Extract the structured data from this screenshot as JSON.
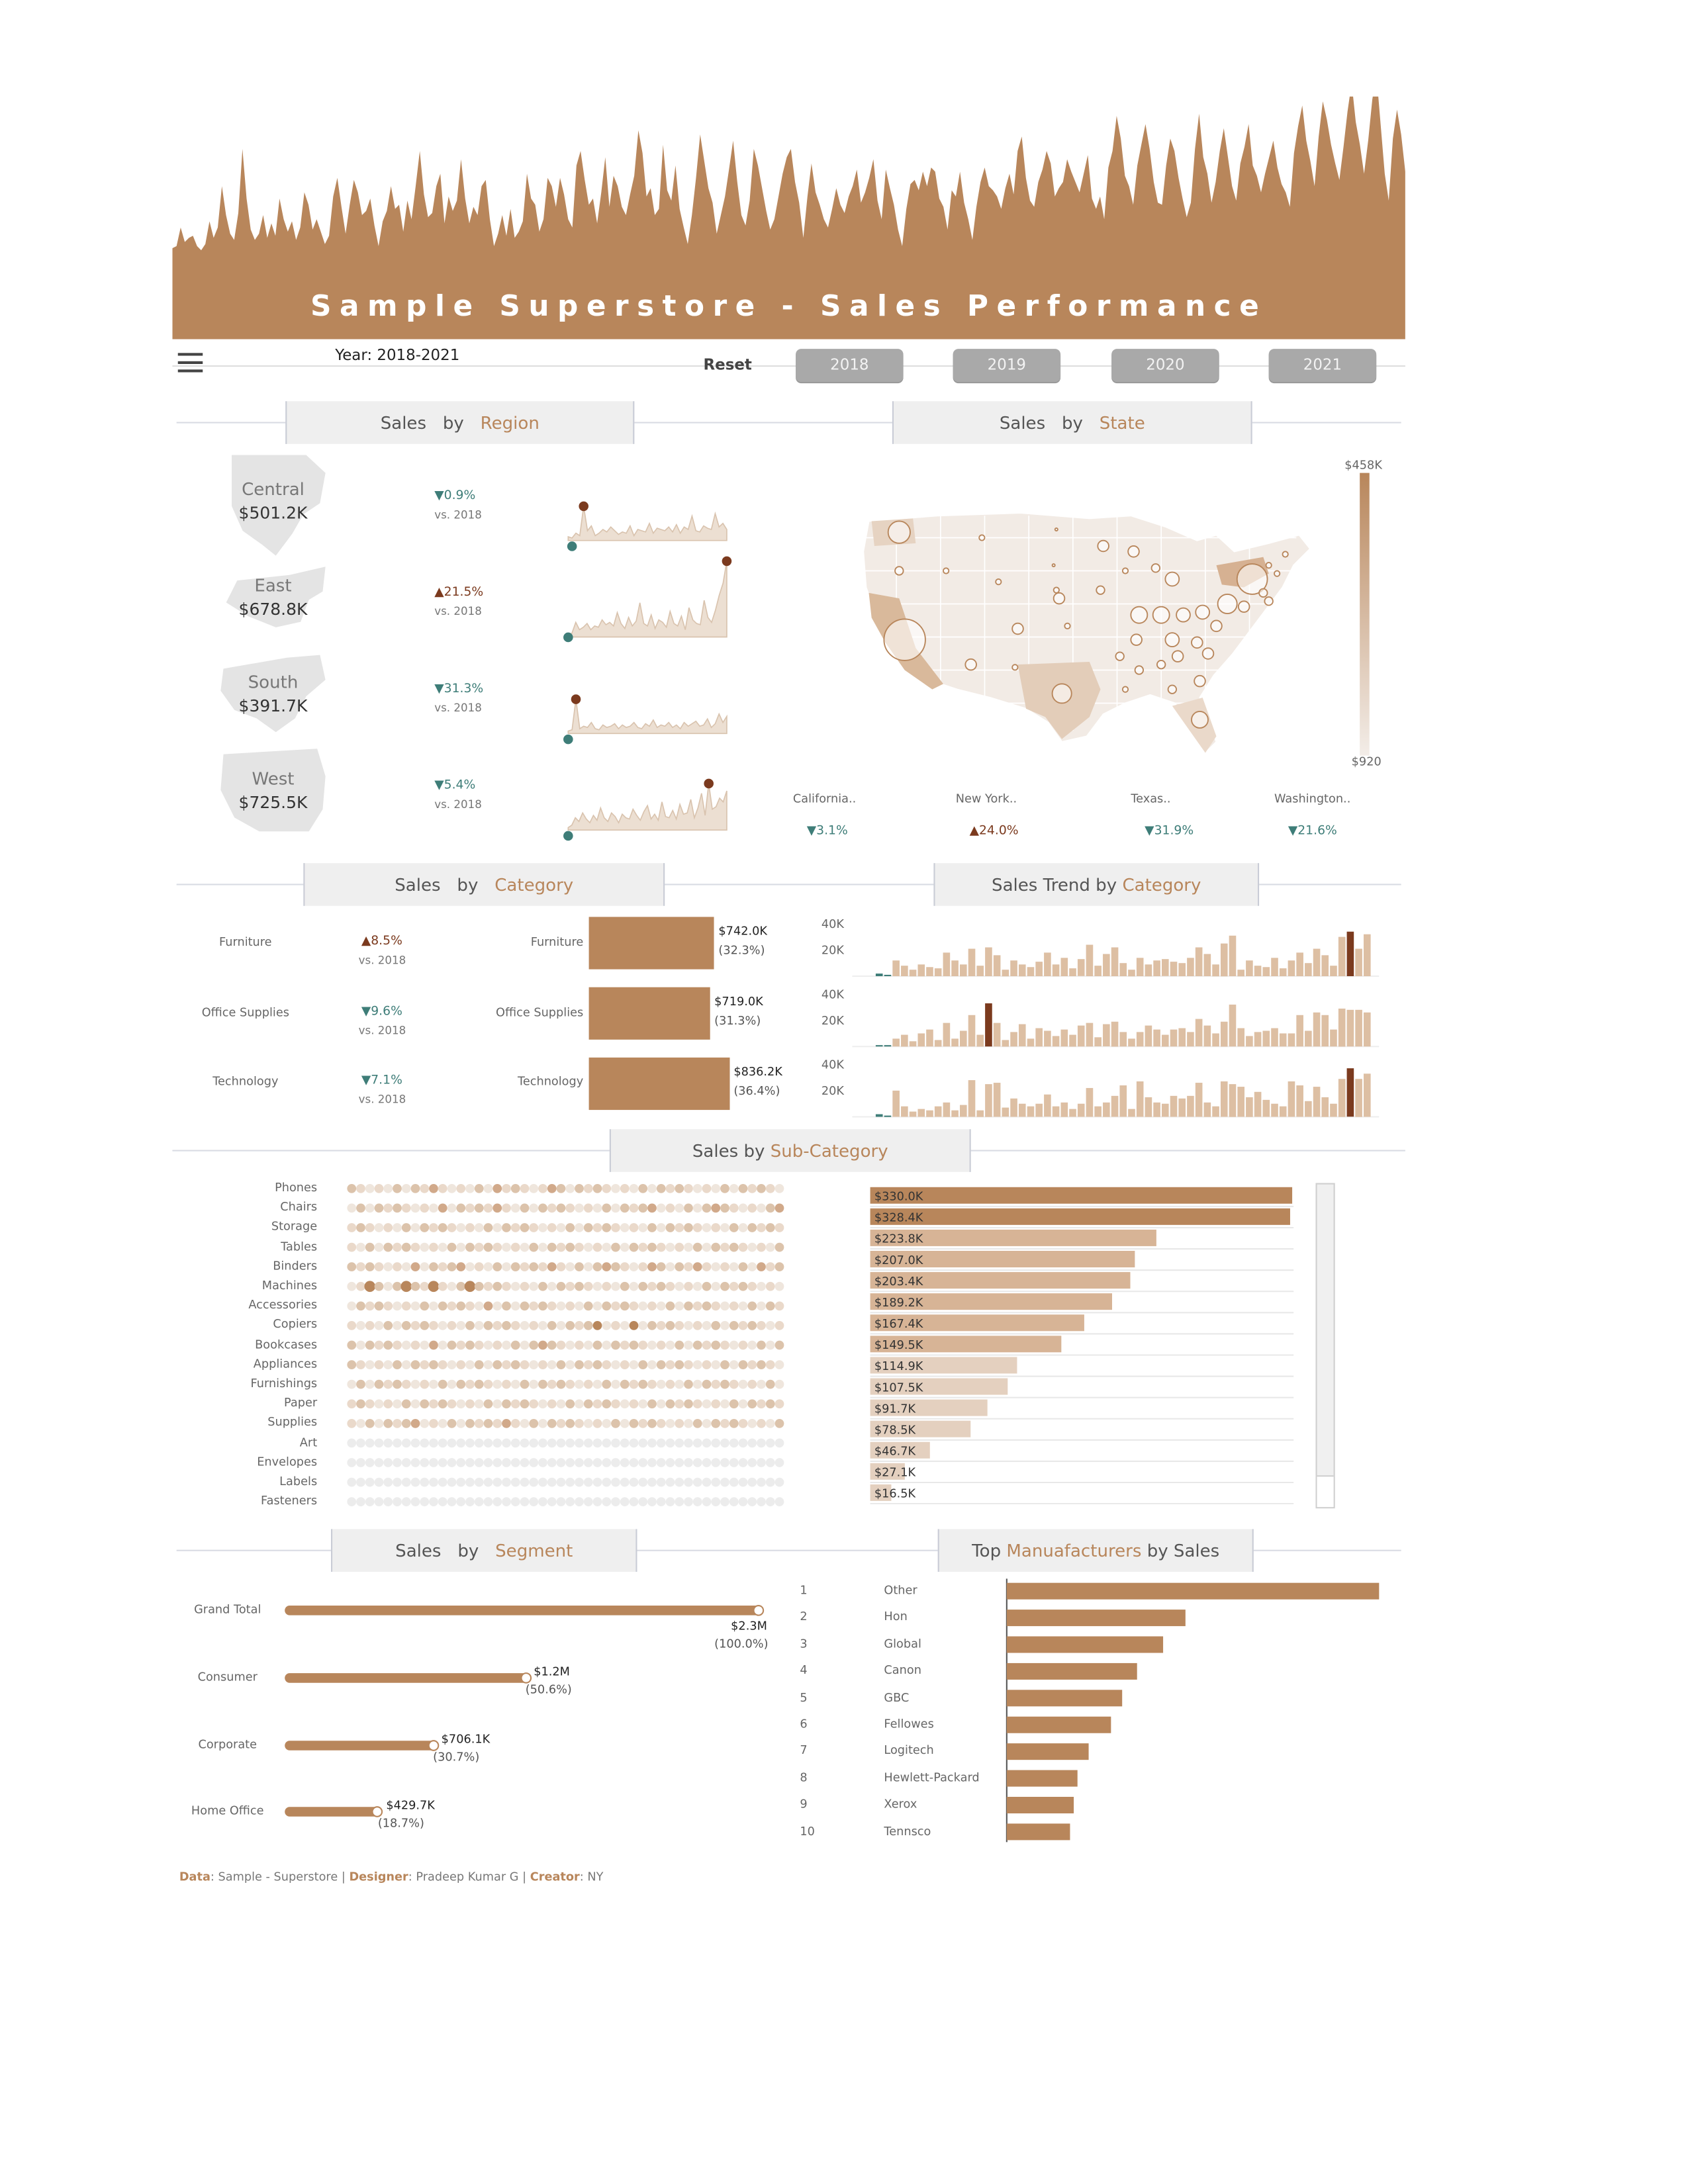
{
  "banner": {
    "title": "Sample Superstore - Sales Performance",
    "color": "#b8865b",
    "profile": [
      8,
      9,
      18,
      11,
      13,
      14,
      9,
      7,
      10,
      21,
      13,
      18,
      38,
      24,
      15,
      12,
      25,
      56,
      32,
      17,
      12,
      15,
      24,
      13,
      20,
      14,
      32,
      22,
      16,
      21,
      12,
      18,
      35,
      29,
      17,
      22,
      16,
      10,
      14,
      33,
      42,
      28,
      15,
      29,
      41,
      35,
      24,
      26,
      32,
      19,
      9,
      21,
      26,
      38,
      27,
      29,
      16,
      31,
      22,
      38,
      55,
      34,
      23,
      25,
      38,
      44,
      20,
      33,
      26,
      31,
      51,
      32,
      20,
      28,
      24,
      38,
      41,
      22,
      9,
      15,
      24,
      14,
      27,
      13,
      16,
      21,
      44,
      32,
      29,
      16,
      22,
      42,
      38,
      28,
      42,
      34,
      22,
      18,
      48,
      55,
      41,
      29,
      32,
      20,
      35,
      52,
      28,
      43,
      38,
      28,
      24,
      34,
      43,
      65,
      54,
      33,
      37,
      24,
      27,
      58,
      36,
      31,
      48,
      27,
      18,
      10,
      24,
      42,
      63,
      50,
      37,
      30,
      15,
      24,
      33,
      46,
      60,
      40,
      24,
      19,
      31,
      56,
      48,
      37,
      26,
      17,
      22,
      33,
      44,
      52,
      56,
      40,
      30,
      13,
      33,
      49,
      35,
      29,
      22,
      18,
      27,
      37,
      29,
      25,
      33,
      38,
      46,
      30,
      35,
      42,
      51,
      31,
      22,
      46,
      37,
      29,
      17,
      9,
      27,
      39,
      41,
      36,
      45,
      38,
      47,
      45,
      32,
      28,
      17,
      36,
      33,
      45,
      30,
      22,
      12,
      28,
      40,
      47,
      38,
      36,
      33,
      27,
      37,
      44,
      34,
      55,
      62,
      42,
      31,
      28,
      40,
      46,
      55,
      49,
      33,
      37,
      40,
      51,
      45,
      40,
      35,
      44,
      53,
      32,
      27,
      33,
      22,
      47,
      55,
      72,
      61,
      43,
      38,
      29,
      48,
      58,
      68,
      56,
      40,
      30,
      29,
      48,
      61,
      55,
      42,
      32,
      23,
      30,
      56,
      73,
      52,
      44,
      30,
      40,
      55,
      66,
      52,
      38,
      31,
      49,
      57,
      68,
      48,
      43,
      35,
      44,
      52,
      60,
      47,
      39,
      35,
      28,
      54,
      67,
      77,
      60,
      50,
      38,
      62,
      79,
      70,
      58,
      49,
      41,
      57,
      74,
      88,
      69,
      58,
      44,
      60,
      80,
      92,
      68,
      44,
      31,
      61,
      75,
      63,
      45
    ]
  },
  "toolbar": {
    "year_label": "Year: 2018-2021",
    "reset_label": "Reset",
    "years": [
      "2018",
      "2019",
      "2020",
      "2021"
    ]
  },
  "headers": {
    "region": {
      "a": "Sales",
      "b": "by",
      "acc": "Region"
    },
    "state": {
      "a": "Sales",
      "b": "by",
      "acc": "State"
    },
    "category": {
      "a": "Sales",
      "b": "by",
      "acc": "Category"
    },
    "trend": {
      "a": "Sales Trend by",
      "acc": "Category"
    },
    "subcategory": {
      "a": "Sales by",
      "acc": "Sub-Category"
    },
    "segment": {
      "a": "Sales",
      "b": "by",
      "acc": "Segment"
    },
    "manufacturers": {
      "a": "Top",
      "acc": "Manuafacturers",
      "b": "by Sales"
    }
  },
  "regions": [
    {
      "name": "Central",
      "value": "$501.2K",
      "change": "▼0.9%",
      "dir": "down",
      "vs": "vs. 2018"
    },
    {
      "name": "East",
      "value": "$678.8K",
      "change": "▲21.5%",
      "dir": "up",
      "vs": "vs. 2018"
    },
    {
      "name": "South",
      "value": "$391.7K",
      "change": "▼31.3%",
      "dir": "down",
      "vs": "vs. 2018"
    },
    {
      "name": "West",
      "value": "$725.5K",
      "change": "▼5.4%",
      "dir": "down",
      "vs": "vs. 2018"
    }
  ],
  "states": {
    "legend_max": "$458K",
    "legend_min": "$920",
    "top": [
      {
        "name": "California..",
        "change": "▼3.1%",
        "dir": "down"
      },
      {
        "name": "New York..",
        "change": "▲24.0%",
        "dir": "up"
      },
      {
        "name": "Texas..",
        "change": "▼31.9%",
        "dir": "down"
      },
      {
        "name": "Washington..",
        "change": "▼21.6%",
        "dir": "down"
      }
    ]
  },
  "categories": [
    {
      "name": "Furniture",
      "change": "▲8.5%",
      "dir": "up",
      "vs": "vs. 2018",
      "value": "$742.0K",
      "pct": "(32.3%)"
    },
    {
      "name": "Office Supplies",
      "change": "▼9.6%",
      "dir": "down",
      "vs": "vs. 2018",
      "value": "$719.0K",
      "pct": "(31.3%)"
    },
    {
      "name": "Technology",
      "change": "▼7.1%",
      "dir": "down",
      "vs": "vs. 2018",
      "value": "$836.2K",
      "pct": "(36.4%)"
    }
  ],
  "trend_axis": [
    "40K",
    "20K"
  ],
  "subcategories": [
    {
      "name": "Phones",
      "value": "$330.0K"
    },
    {
      "name": "Chairs",
      "value": "$328.4K"
    },
    {
      "name": "Storage",
      "value": "$223.8K"
    },
    {
      "name": "Tables",
      "value": "$207.0K"
    },
    {
      "name": "Binders",
      "value": "$203.4K"
    },
    {
      "name": "Machines",
      "value": "$189.2K"
    },
    {
      "name": "Accessories",
      "value": "$167.4K"
    },
    {
      "name": "Copiers",
      "value": "$149.5K"
    },
    {
      "name": "Bookcases",
      "value": "$114.9K"
    },
    {
      "name": "Appliances",
      "value": "$107.5K"
    },
    {
      "name": "Furnishings",
      "value": "$91.7K"
    },
    {
      "name": "Paper",
      "value": "$78.5K"
    },
    {
      "name": "Supplies",
      "value": "$46.7K"
    },
    {
      "name": "Art",
      "value": "$27.1K"
    },
    {
      "name": "Envelopes",
      "value": "$16.5K"
    },
    {
      "name": "Labels",
      "value": ""
    },
    {
      "name": "Fasteners",
      "value": ""
    }
  ],
  "segments": [
    {
      "name": "Grand Total",
      "value": "$2.3M",
      "pct": "(100.0%)"
    },
    {
      "name": "Consumer",
      "value": "$1.2M",
      "pct": "(50.6%)"
    },
    {
      "name": "Corporate",
      "value": "$706.1K",
      "pct": "(30.7%)"
    },
    {
      "name": "Home Office",
      "value": "$429.7K",
      "pct": "(18.7%)"
    }
  ],
  "manufacturers": [
    {
      "rank": "1",
      "name": "Other"
    },
    {
      "rank": "2",
      "name": "Hon"
    },
    {
      "rank": "3",
      "name": "Global"
    },
    {
      "rank": "4",
      "name": "Canon"
    },
    {
      "rank": "5",
      "name": "GBC"
    },
    {
      "rank": "6",
      "name": "Fellowes"
    },
    {
      "rank": "7",
      "name": "Logitech"
    },
    {
      "rank": "8",
      "name": "Hewlett-Packard"
    },
    {
      "rank": "9",
      "name": "Xerox"
    },
    {
      "rank": "10",
      "name": "Tennsco"
    }
  ],
  "footer": {
    "data_key": "Data",
    "data_val": ": Sample - Superstore | ",
    "designer_key": "Designer",
    "designer_val": ": Pradeep Kumar G | ",
    "creator_key": "Creator",
    "creator_val": ": NY"
  },
  "chart_data": [
    {
      "type": "bar",
      "title": "Sales by Category",
      "categories": [
        "Furniture",
        "Office Supplies",
        "Technology"
      ],
      "values": [
        742.0,
        719.0,
        836.2
      ],
      "unit": "$K",
      "percent": [
        32.3,
        31.3,
        36.4
      ]
    },
    {
      "type": "bar",
      "title": "Sales by Sub-Category",
      "categories": [
        "Phones",
        "Chairs",
        "Storage",
        "Tables",
        "Binders",
        "Machines",
        "Accessories",
        "Copiers",
        "Bookcases",
        "Appliances",
        "Furnishings",
        "Paper",
        "Supplies",
        "Art",
        "Envelopes"
      ],
      "values": [
        330.0,
        328.4,
        223.8,
        207.0,
        203.4,
        189.2,
        167.4,
        149.5,
        114.9,
        107.5,
        91.7,
        78.5,
        46.7,
        27.1,
        16.5
      ],
      "unit": "$K"
    },
    {
      "type": "bar",
      "title": "Sales by Segment",
      "categories": [
        "Grand Total",
        "Consumer",
        "Corporate",
        "Home Office"
      ],
      "values": [
        2300,
        1160,
        706.1,
        429.7
      ],
      "unit": "$K",
      "percent": [
        100.0,
        50.6,
        30.7,
        18.7
      ]
    },
    {
      "type": "bar",
      "title": "Top Manuafacturers by Sales",
      "categories": [
        "Other",
        "Hon",
        "Global",
        "Canon",
        "GBC",
        "Fellowes",
        "Logitech",
        "Hewlett-Packard",
        "Xerox",
        "Tennsco"
      ],
      "values": [
        100,
        48,
        42,
        35,
        31,
        28,
        22,
        19,
        18,
        17
      ],
      "unit": "relative bar length (%)"
    },
    {
      "type": "bar",
      "title": "Sales Trend by Category",
      "ylim": [
        0,
        45
      ],
      "unit": "$K",
      "series": [
        {
          "name": "Furniture",
          "values": [
            2,
            1,
            12,
            8,
            5,
            9,
            7,
            6,
            18,
            12,
            9,
            21,
            8,
            22,
            16,
            5,
            12,
            9,
            7,
            11,
            18,
            9,
            14,
            6,
            13,
            24,
            8,
            17,
            22,
            10,
            5,
            14,
            9,
            12,
            13,
            11,
            10,
            14,
            22,
            17,
            9,
            25,
            31,
            5,
            12,
            8,
            7,
            14,
            6,
            12,
            18,
            10,
            21,
            16,
            8,
            30,
            34,
            21,
            32
          ]
        },
        {
          "name": "Office Supplies",
          "values": [
            1,
            1,
            6,
            9,
            4,
            10,
            13,
            5,
            18,
            6,
            12,
            24,
            9,
            33,
            18,
            5,
            11,
            17,
            6,
            14,
            12,
            8,
            13,
            9,
            16,
            18,
            7,
            17,
            19,
            11,
            6,
            11,
            16,
            13,
            9,
            13,
            14,
            11,
            21,
            16,
            10,
            19,
            32,
            14,
            8,
            11,
            12,
            14,
            10,
            10,
            24,
            12,
            26,
            24,
            13,
            29,
            28,
            28,
            26
          ]
        },
        {
          "name": "Technology",
          "values": [
            2,
            1,
            20,
            8,
            4,
            6,
            5,
            8,
            11,
            5,
            9,
            28,
            5,
            25,
            26,
            7,
            14,
            10,
            8,
            10,
            17,
            8,
            11,
            6,
            10,
            22,
            8,
            11,
            16,
            24,
            6,
            27,
            15,
            11,
            10,
            16,
            14,
            16,
            26,
            11,
            8,
            27,
            25,
            23,
            15,
            19,
            13,
            10,
            8,
            27,
            24,
            12,
            23,
            15,
            10,
            29,
            37,
            29,
            33
          ]
        }
      ]
    },
    {
      "type": "area",
      "title": "Sales by Region",
      "series": [
        {
          "name": "Central",
          "values": [
            3,
            2,
            6,
            4,
            28,
            8,
            12,
            4,
            6,
            9,
            7,
            11,
            8,
            5,
            7,
            6,
            12,
            4,
            9,
            8,
            7,
            14,
            6,
            10,
            9,
            8,
            11,
            7,
            13,
            6,
            11,
            9,
            20,
            8,
            7,
            12,
            10,
            9,
            22,
            11,
            14,
            9
          ]
        },
        {
          "name": "East",
          "values": [
            2,
            3,
            12,
            6,
            8,
            11,
            6,
            9,
            8,
            14,
            10,
            12,
            9,
            20,
            11,
            7,
            16,
            9,
            13,
            28,
            11,
            9,
            18,
            7,
            14,
            12,
            8,
            21,
            11,
            9,
            17,
            6,
            24,
            14,
            11,
            10,
            30,
            16,
            12,
            22,
            34,
            44,
            62
          ]
        },
        {
          "name": "South",
          "values": [
            2,
            3,
            28,
            4,
            6,
            5,
            9,
            4,
            3,
            7,
            5,
            6,
            8,
            4,
            7,
            5,
            6,
            9,
            5,
            4,
            8,
            6,
            11,
            5,
            7,
            6,
            9,
            5,
            7,
            4,
            9,
            6,
            8,
            10,
            6,
            7,
            12,
            5,
            8,
            16,
            9,
            14
          ]
        },
        {
          "name": "West",
          "values": [
            2,
            4,
            10,
            7,
            14,
            9,
            6,
            12,
            8,
            18,
            10,
            7,
            14,
            11,
            6,
            13,
            10,
            9,
            17,
            12,
            8,
            15,
            20,
            9,
            13,
            8,
            23,
            11,
            10,
            16,
            9,
            21,
            13,
            14,
            25,
            10,
            18,
            30,
            12,
            38,
            17,
            19,
            26,
            23,
            32
          ]
        }
      ]
    }
  ]
}
